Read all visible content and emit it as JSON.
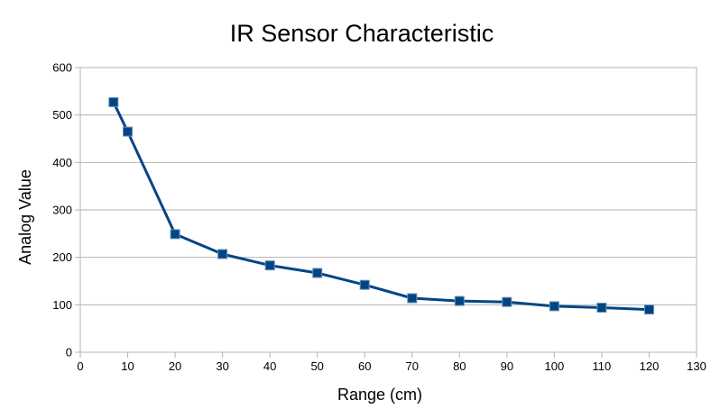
{
  "chart_data": {
    "type": "line",
    "title": "IR Sensor Characteristic",
    "xlabel": "Range (cm)",
    "ylabel": "Analog Value",
    "xlim": [
      0,
      130
    ],
    "ylim": [
      0,
      600
    ],
    "xticks": [
      0,
      10,
      20,
      30,
      40,
      50,
      60,
      70,
      80,
      90,
      100,
      110,
      120,
      130
    ],
    "yticks": [
      0,
      100,
      200,
      300,
      400,
      500,
      600
    ],
    "x_tick_labels": [
      "0",
      "10",
      "20",
      "30",
      "40",
      "50",
      "60",
      "70",
      "80",
      "90",
      "100",
      "110",
      "120",
      "130"
    ],
    "y_tick_labels": [
      "0",
      "100",
      "200",
      "300",
      "400",
      "500",
      "600"
    ],
    "grid": "horizontal",
    "legend": "none",
    "marker": "square",
    "color": "#004586",
    "series": [
      {
        "x": [
          7,
          10,
          20,
          30,
          40,
          50,
          60,
          70,
          80,
          90,
          100,
          110,
          120
        ],
        "y": [
          527,
          465,
          249,
          207,
          183,
          167,
          142,
          114,
          108,
          106,
          97,
          94,
          90
        ]
      }
    ]
  }
}
